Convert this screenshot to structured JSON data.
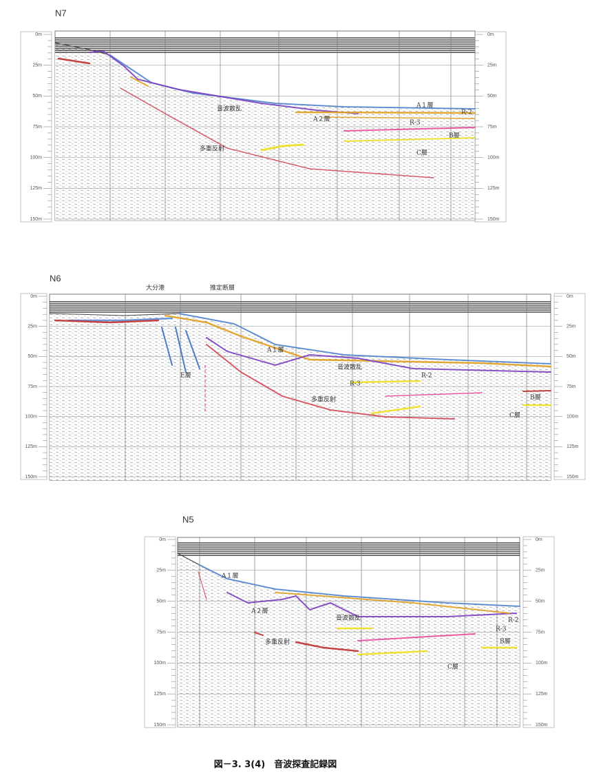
{
  "depth_scale": [
    "0m",
    "25m",
    "50m",
    "75m",
    "100m",
    "125m",
    "150m"
  ],
  "panels": [
    {
      "label": "N7",
      "annotations": [
        "音波散乱",
        "A１層",
        "R-2",
        "A２層",
        "R-3",
        "B層",
        "多重反射",
        "C層"
      ]
    },
    {
      "label": "N6",
      "annotations": [
        "大分港",
        "推定断層",
        "A１層",
        "音波散乱",
        "R-2",
        "R-3",
        "E層",
        "多重反射",
        "B層",
        "C層"
      ]
    },
    {
      "label": "N5",
      "annotations": [
        "A１層",
        "A２層",
        "音波散乱",
        "R-2",
        "R-3",
        "多重反射",
        "B層",
        "C層"
      ]
    }
  ],
  "caption": "図－3. 3(4)　音波探査記録図"
}
